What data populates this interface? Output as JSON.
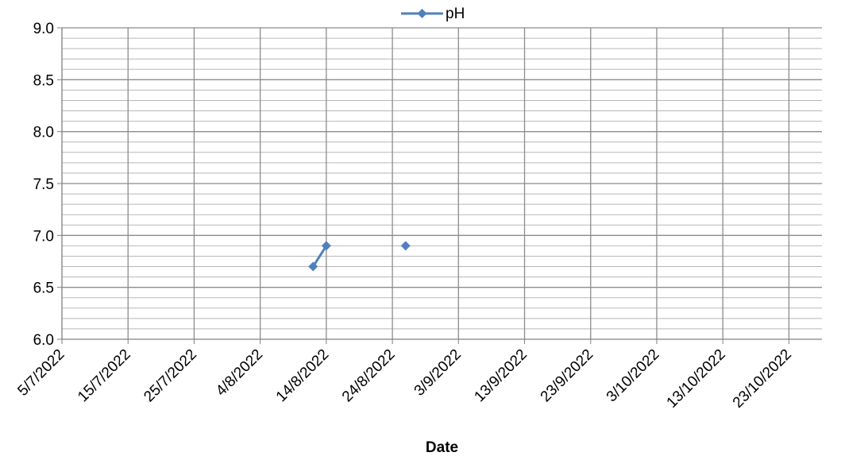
{
  "chart_data": {
    "type": "line",
    "title": "",
    "xlabel": "Date",
    "ylabel": "",
    "x_type": "date",
    "xlim": [
      "2022-07-05",
      "2022-10-28"
    ],
    "ylim": [
      6.0,
      9.0
    ],
    "x_ticks": [
      {
        "date": "2022-07-05",
        "label": "5/7/2022"
      },
      {
        "date": "2022-07-15",
        "label": "15/7/2022"
      },
      {
        "date": "2022-07-25",
        "label": "25/7/2022"
      },
      {
        "date": "2022-08-04",
        "label": "4/8/2022"
      },
      {
        "date": "2022-08-14",
        "label": "14/8/2022"
      },
      {
        "date": "2022-08-24",
        "label": "24/8/2022"
      },
      {
        "date": "2022-09-03",
        "label": "3/9/2022"
      },
      {
        "date": "2022-09-13",
        "label": "13/9/2022"
      },
      {
        "date": "2022-09-23",
        "label": "23/9/2022"
      },
      {
        "date": "2022-10-03",
        "label": "3/10/2022"
      },
      {
        "date": "2022-10-13",
        "label": "13/10/2022"
      },
      {
        "date": "2022-10-23",
        "label": "23/10/2022"
      }
    ],
    "y_ticks": [
      "6.0",
      "6.5",
      "7.0",
      "7.5",
      "8.0",
      "8.5",
      "9.0"
    ],
    "y_minor_step": 0.1,
    "grid": true,
    "legend_position": "top",
    "series": [
      {
        "name": "pH",
        "color": "#4F81BD",
        "marker": "diamond",
        "points": [
          {
            "x": "2022-08-12",
            "y": 6.7
          },
          {
            "x": "2022-08-14",
            "y": 6.9
          },
          {
            "x": null,
            "y": null
          },
          {
            "x": "2022-08-26",
            "y": 6.9
          }
        ]
      }
    ]
  }
}
